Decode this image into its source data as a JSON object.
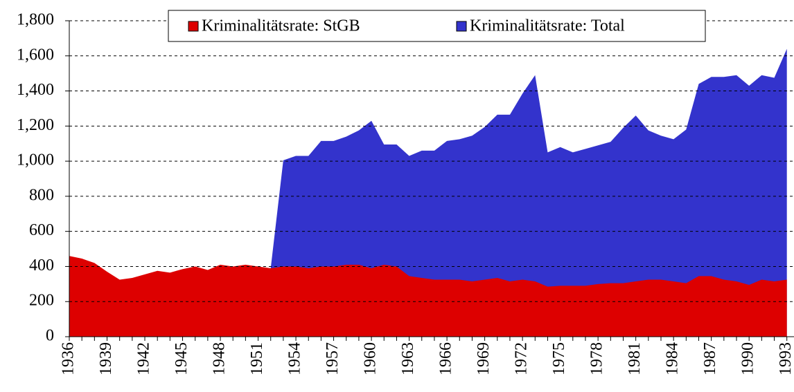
{
  "chart_data": {
    "type": "area",
    "categories": [
      "1936",
      null,
      null,
      "1939",
      null,
      null,
      "1942",
      null,
      null,
      "1945",
      null,
      null,
      "1948",
      null,
      null,
      "1951",
      null,
      null,
      "1954",
      null,
      null,
      "1957",
      null,
      null,
      "1960",
      null,
      null,
      "1963",
      null,
      null,
      "1966",
      null,
      null,
      "1969",
      null,
      null,
      "1972",
      null,
      null,
      "1975",
      null,
      null,
      "1978",
      null,
      null,
      "1981",
      null,
      null,
      "1984",
      null,
      null,
      "1987",
      null,
      null,
      "1990",
      null,
      null,
      "1993"
    ],
    "series": [
      {
        "name": "Kriminalitätsrate: Total",
        "color": "#3333cc",
        "values": [
          null,
          null,
          null,
          null,
          null,
          null,
          null,
          null,
          null,
          null,
          null,
          null,
          null,
          null,
          null,
          null,
          390,
          1005,
          1030,
          1030,
          1115,
          1115,
          1140,
          1175,
          1230,
          1095,
          1095,
          1030,
          1060,
          1060,
          1115,
          1125,
          1145,
          1195,
          1265,
          1265,
          1385,
          1490,
          1050,
          1080,
          1050,
          1070,
          1090,
          1110,
          1190,
          1260,
          1175,
          1145,
          1125,
          1180,
          1440,
          1480,
          1480,
          1490,
          1430,
          1490,
          1475,
          1640
        ]
      },
      {
        "name": "Kriminalitätsrate: StGB",
        "color": "#dd0000",
        "values": [
          460,
          445,
          420,
          370,
          325,
          335,
          355,
          375,
          365,
          385,
          400,
          380,
          410,
          400,
          410,
          400,
          390,
          400,
          400,
          390,
          400,
          400,
          410,
          410,
          390,
          410,
          400,
          345,
          335,
          325,
          325,
          325,
          315,
          325,
          335,
          315,
          325,
          315,
          285,
          290,
          290,
          290,
          300,
          305,
          305,
          315,
          325,
          325,
          315,
          305,
          345,
          345,
          325,
          315,
          295,
          325,
          315,
          325
        ]
      }
    ],
    "ylim": [
      0,
      1800
    ],
    "yticks": [
      0,
      {
        "value": 200,
        "label": "200"
      },
      {
        "value": 400,
        "label": "400"
      },
      {
        "value": 600,
        "label": "600"
      },
      {
        "value": 800,
        "label": "800"
      },
      {
        "value": 1000,
        "label": "1,000"
      },
      {
        "value": 1200,
        "label": "1,200"
      },
      {
        "value": 1400,
        "label": "1,400"
      },
      {
        "value": 1600,
        "label": "1,600"
      },
      {
        "value": 1800,
        "label": "1,800"
      }
    ],
    "grid": true,
    "legend": "top"
  }
}
